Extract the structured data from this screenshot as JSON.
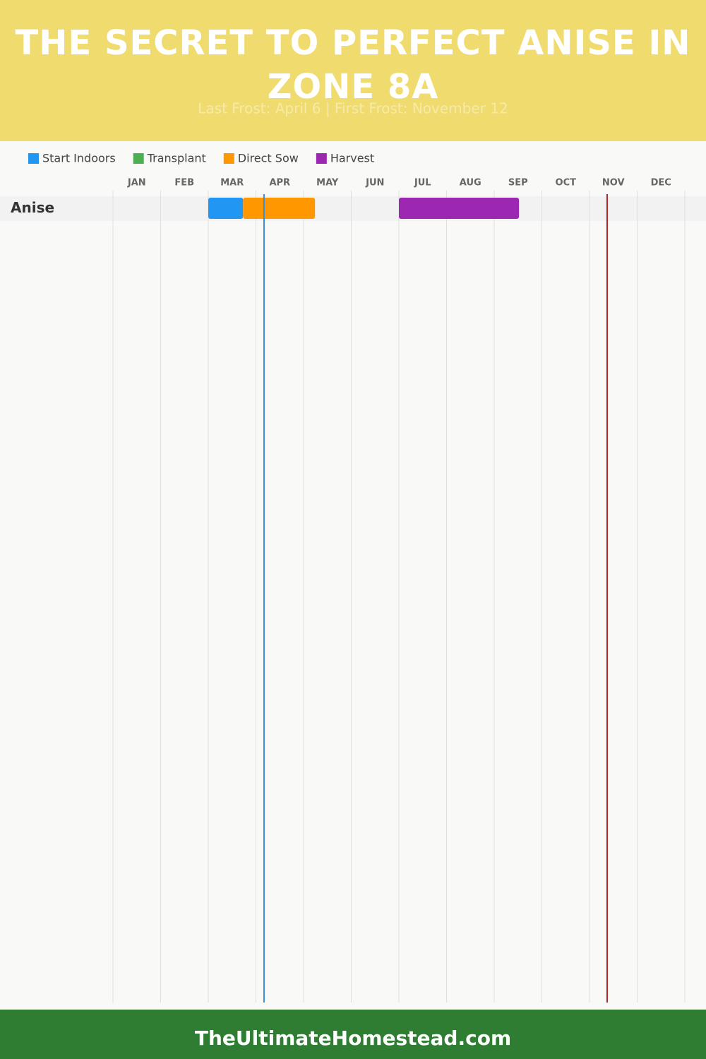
{
  "chart_data": {
    "type": "gantt",
    "title": "THE SECRET TO PERFECT ANISE IN ZONE 8A",
    "subtitle": "Last Frost: April 6 | First Frost: November 12",
    "months": [
      "JAN",
      "FEB",
      "MAR",
      "APR",
      "MAY",
      "JUN",
      "JUL",
      "AUG",
      "SEP",
      "OCT",
      "NOV",
      "DEC"
    ],
    "xlim": [
      0,
      12
    ],
    "categories": [
      "Anise"
    ],
    "series": [
      {
        "name": "Start Indoors",
        "color": "#2196f3",
        "values": [
          [
            2,
            2.73
          ]
        ]
      },
      {
        "name": "Transplant",
        "color": "#4caf50",
        "values": [
          null
        ]
      },
      {
        "name": "Direct Sow",
        "color": "#ff9800",
        "values": [
          [
            2.73,
            4.24
          ]
        ]
      },
      {
        "name": "Harvest",
        "color": "#9c27b0",
        "values": [
          [
            6,
            8.52
          ]
        ]
      }
    ],
    "frost_lines": [
      {
        "value": 3.17,
        "color": "#3a8fd8"
      },
      {
        "value": 10.37,
        "color": "#b22222"
      }
    ],
    "footer": "TheUltimateHomestead.com"
  }
}
